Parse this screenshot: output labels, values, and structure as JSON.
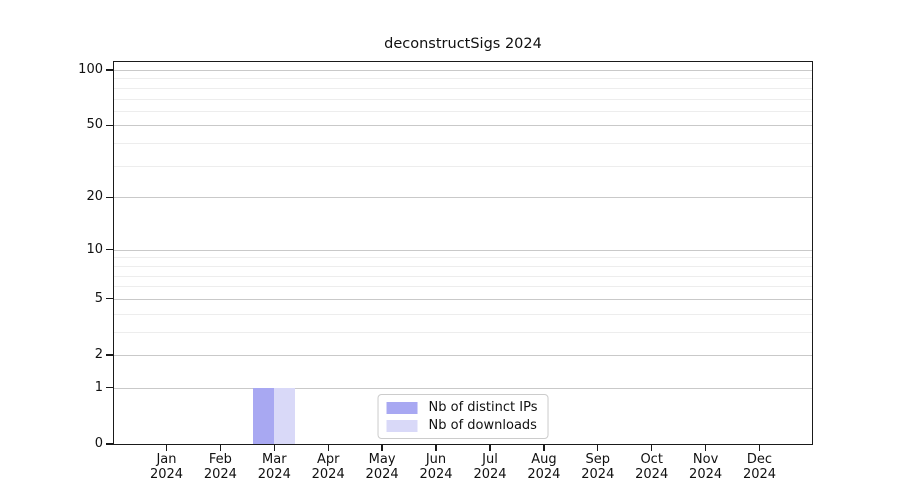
{
  "chart_data": {
    "type": "bar",
    "title": "deconstructSigs 2024",
    "categories": [
      "Jan 2024",
      "Feb 2024",
      "Mar 2024",
      "Apr 2024",
      "May 2024",
      "Jun 2024",
      "Jul 2024",
      "Aug 2024",
      "Sep 2024",
      "Oct 2024",
      "Nov 2024",
      "Dec 2024"
    ],
    "series": [
      {
        "name": "Nb of distinct IPs",
        "color": "#a8a8f2",
        "values": [
          0,
          0,
          1,
          0,
          0,
          0,
          0,
          0,
          0,
          0,
          0,
          0
        ]
      },
      {
        "name": "Nb of downloads",
        "color": "#d9d9f8",
        "values": [
          0,
          0,
          1,
          0,
          0,
          0,
          0,
          0,
          0,
          0,
          0,
          0
        ]
      }
    ],
    "xlabel": "",
    "ylabel": "",
    "yscale": "log1p",
    "ylim": [
      0,
      100
    ],
    "yticks": [
      0,
      1,
      2,
      5,
      10,
      20,
      50,
      100
    ],
    "minor_yticks": [
      3,
      4,
      6,
      7,
      8,
      9,
      30,
      40,
      60,
      70,
      80,
      90
    ],
    "grid": true,
    "legend_position": "lower center",
    "colors": {
      "major_grid": "#c9c9c9",
      "minor_grid": "#ededed",
      "axis": "#1a1a1a"
    }
  }
}
